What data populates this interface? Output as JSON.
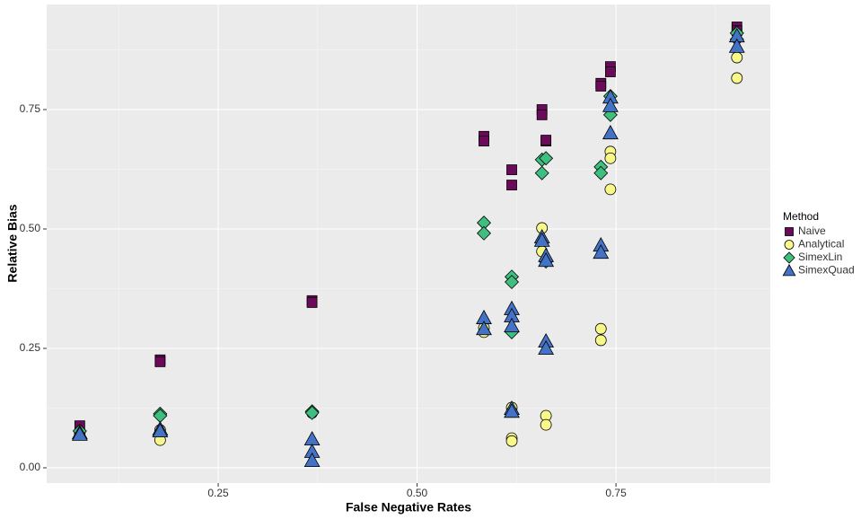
{
  "chart_data": {
    "type": "scatter",
    "x_label": "False Negative Rates",
    "y_label": "Relative Bias",
    "legend_title": "Method",
    "xlim": [
      0.0344,
      0.944
    ],
    "ylim": [
      -0.032,
      0.97
    ],
    "xticks": [
      {
        "value": 0.25,
        "label": "0.25"
      },
      {
        "value": 0.5,
        "label": "0.50"
      },
      {
        "value": 0.75,
        "label": "0.75"
      }
    ],
    "yticks": [
      {
        "value": 0,
        "label": "0.00"
      },
      {
        "value": 0.25,
        "label": "0.25"
      },
      {
        "value": 0.5,
        "label": "0.50"
      },
      {
        "value": 0.75,
        "label": "0.75"
      }
    ],
    "xminor": [
      0.125,
      0.375,
      0.625,
      0.875
    ],
    "yminor": [
      0.125,
      0.375,
      0.625,
      0.875
    ],
    "grid": true,
    "legend": "right",
    "series": [
      {
        "name": "Naive",
        "color": "#6b0a5a",
        "shape": "square",
        "x": [
          0.076,
          0.177,
          0.177,
          0.368,
          0.368,
          0.584,
          0.584,
          0.619,
          0.619,
          0.657,
          0.657,
          0.662,
          0.662,
          0.731,
          0.731,
          0.743,
          0.743,
          0.902,
          0.902
        ],
        "values": [
          0.088,
          0.226,
          0.222,
          0.35,
          0.346,
          0.694,
          0.684,
          0.624,
          0.592,
          0.75,
          0.739,
          0.684,
          0.686,
          0.805,
          0.799,
          0.84,
          0.829,
          0.923,
          0.915
        ]
      },
      {
        "name": "Analytical",
        "color": "#f7f78a",
        "shape": "circle",
        "x": [
          0.076,
          0.177,
          0.177,
          0.368,
          0.584,
          0.584,
          0.619,
          0.619,
          0.619,
          0.619,
          0.657,
          0.657,
          0.662,
          0.662,
          0.731,
          0.731,
          0.743,
          0.743,
          0.743,
          0.902,
          0.902
        ],
        "values": [
          0.073,
          0.058,
          0.079,
          0.115,
          0.284,
          0.293,
          0.126,
          0.117,
          0.062,
          0.056,
          0.502,
          0.453,
          0.109,
          0.09,
          0.291,
          0.267,
          0.662,
          0.648,
          0.583,
          0.859,
          0.816
        ]
      },
      {
        "name": "SimexLin",
        "color": "#3fbf7f",
        "shape": "diamond",
        "x": [
          0.076,
          0.177,
          0.177,
          0.368,
          0.368,
          0.584,
          0.584,
          0.619,
          0.619,
          0.619,
          0.657,
          0.657,
          0.662,
          0.662,
          0.731,
          0.731,
          0.743,
          0.743,
          0.902,
          0.902
        ],
        "values": [
          0.077,
          0.113,
          0.109,
          0.118,
          0.115,
          0.513,
          0.491,
          0.4,
          0.389,
          0.284,
          0.645,
          0.617,
          0.648,
          0.432,
          0.63,
          0.617,
          0.739,
          0.778,
          0.91,
          0.897
        ]
      },
      {
        "name": "SimexQuad",
        "color": "#4472c4",
        "shape": "triangle",
        "x": [
          0.076,
          0.076,
          0.177,
          0.177,
          0.368,
          0.368,
          0.368,
          0.584,
          0.584,
          0.619,
          0.619,
          0.619,
          0.619,
          0.619,
          0.657,
          0.657,
          0.662,
          0.662,
          0.662,
          0.662,
          0.731,
          0.731,
          0.743,
          0.743,
          0.743,
          0.902,
          0.902
        ],
        "values": [
          0.073,
          0.07,
          0.081,
          0.077,
          0.06,
          0.034,
          0.015,
          0.314,
          0.291,
          0.333,
          0.318,
          0.297,
          0.124,
          0.118,
          0.483,
          0.476,
          0.444,
          0.434,
          0.265,
          0.25,
          0.466,
          0.451,
          0.776,
          0.758,
          0.701,
          0.904,
          0.882
        ]
      }
    ]
  }
}
